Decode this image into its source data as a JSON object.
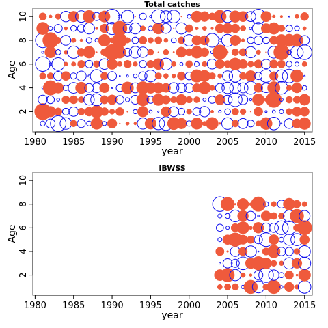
{
  "colors": {
    "positive": "#ef5a3c",
    "negative": "#1010ee"
  },
  "chart_data": [
    {
      "type": "scatter",
      "title": "Total catches",
      "xlabel": "year",
      "ylabel": "Age",
      "xlim": [
        1979.7,
        2016.0
      ],
      "ylim": [
        0.3,
        10.7
      ],
      "xticks": [
        1980,
        1985,
        1990,
        1995,
        2000,
        2005,
        2010,
        2015
      ],
      "yticks": [
        2,
        4,
        6,
        8,
        10
      ],
      "x_range": [
        1981,
        2015
      ],
      "y_range": [
        1,
        10
      ],
      "seed": 7,
      "overrides": [
        {
          "x": 1981,
          "y": 2,
          "v": 1.0
        },
        {
          "x": 1981,
          "y": 6,
          "v": -0.8
        },
        {
          "x": 1981,
          "y": 8,
          "v": -0.8
        },
        {
          "x": 1982,
          "y": 4,
          "v": 0.8
        },
        {
          "x": 1982,
          "y": 8,
          "v": 0.9
        },
        {
          "x": 1983,
          "y": 1,
          "v": -0.9
        },
        {
          "x": 1983,
          "y": 6,
          "v": -0.6
        },
        {
          "x": 1988,
          "y": 5,
          "v": -0.6
        },
        {
          "x": 1990,
          "y": 10,
          "v": -0.8
        },
        {
          "x": 1990,
          "y": 7,
          "v": 0.9
        },
        {
          "x": 1991,
          "y": 8,
          "v": 0.8
        },
        {
          "x": 1991,
          "y": 9,
          "v": 0.8
        },
        {
          "x": 1996,
          "y": 10,
          "v": -0.7
        },
        {
          "x": 1997,
          "y": 1,
          "v": -0.7
        },
        {
          "x": 1998,
          "y": 10,
          "v": -0.6
        },
        {
          "x": 2003,
          "y": 8,
          "v": -0.7
        },
        {
          "x": 2004,
          "y": 7,
          "v": 0.8
        },
        {
          "x": 2006,
          "y": 3,
          "v": -0.7
        },
        {
          "x": 2008,
          "y": 4,
          "v": -0.6
        },
        {
          "x": 2009,
          "y": 10,
          "v": -0.8
        },
        {
          "x": 2010,
          "y": 5,
          "v": -0.6
        },
        {
          "x": 2011,
          "y": 3,
          "v": 0.9
        },
        {
          "x": 2011,
          "y": 1,
          "v": -0.6
        },
        {
          "x": 2012,
          "y": 7,
          "v": 0.9
        },
        {
          "x": 2013,
          "y": 5,
          "v": -0.7
        },
        {
          "x": 2014,
          "y": 7,
          "v": -0.6
        },
        {
          "x": 2015,
          "y": 7,
          "v": -0.8
        }
      ]
    },
    {
      "type": "scatter",
      "title": "IBWSS",
      "xlabel": "year",
      "ylabel": "Age",
      "xlim": [
        1979.7,
        2016.0
      ],
      "ylim": [
        0.3,
        10.7
      ],
      "xticks": [
        1980,
        1985,
        1990,
        1995,
        2000,
        2005,
        2010,
        2015
      ],
      "yticks": [
        2,
        4,
        6,
        8,
        10
      ],
      "x_range": [
        2004,
        2015
      ],
      "y_range": [
        1,
        8
      ],
      "seed": 19,
      "overrides": [
        {
          "x": 2004,
          "y": 8,
          "v": -0.8
        },
        {
          "x": 2005,
          "y": 8,
          "v": 0.7
        },
        {
          "x": 2005,
          "y": 2,
          "v": 0.7
        },
        {
          "x": 2006,
          "y": 5,
          "v": 0.7
        },
        {
          "x": 2007,
          "y": 3,
          "v": -0.6
        },
        {
          "x": 2008,
          "y": 1,
          "v": 0.7
        },
        {
          "x": 2009,
          "y": 8,
          "v": 0.8
        },
        {
          "x": 2009,
          "y": 3,
          "v": 0.7
        },
        {
          "x": 2010,
          "y": 5,
          "v": -0.7
        },
        {
          "x": 2010,
          "y": 2,
          "v": -0.8
        },
        {
          "x": 2011,
          "y": 1,
          "v": 0.7
        },
        {
          "x": 2012,
          "y": 6,
          "v": -0.7
        },
        {
          "x": 2013,
          "y": 6,
          "v": -0.7
        },
        {
          "x": 2014,
          "y": 7,
          "v": 0.7
        },
        {
          "x": 2015,
          "y": 6,
          "v": 0.8
        },
        {
          "x": 2015,
          "y": 1,
          "v": -0.6
        }
      ]
    }
  ]
}
